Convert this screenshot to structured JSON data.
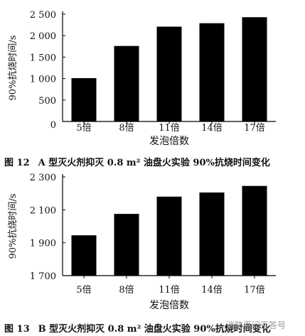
{
  "chart_data": [
    {
      "type": "bar",
      "figure_number": "图 12",
      "title": "A 型灭火剂抑灭 0.8 m² 油盘火实验 90%抗烧时间变化",
      "xlabel": "发泡倍数",
      "ylabel": "90%抗烧时间/s",
      "categories": [
        "5倍",
        "8倍",
        "11倍",
        "14倍",
        "17倍"
      ],
      "values": [
        1010,
        1760,
        2210,
        2290,
        2430
      ],
      "ylim": [
        0,
        2500
      ],
      "yticks": [
        0,
        500,
        1000,
        1500,
        2000,
        2500
      ],
      "ytick_labels": [
        "0",
        "500",
        "1 000",
        "1 500",
        "2 000",
        "2 500"
      ],
      "bar_color": "#000000",
      "grid": false
    },
    {
      "type": "bar",
      "figure_number": "图 13",
      "title": "B 型灭火剂抑灭 0.8 m² 油盘火实验 90%抗烧时间变化",
      "xlabel": "发泡倍数",
      "ylabel": "90%抗烧时间/s",
      "categories": [
        "5倍",
        "8倍",
        "11倍",
        "14倍",
        "17倍"
      ],
      "values": [
        1945,
        2075,
        2180,
        2205,
        2245
      ],
      "ylim": [
        1700,
        2300
      ],
      "yticks": [
        1700,
        1900,
        2100,
        2300
      ],
      "ytick_labels": [
        "1 700",
        "1 900",
        "2 100",
        "2 300"
      ],
      "bar_color": "#000000",
      "grid": false
    }
  ],
  "watermark": "消防百问百答号"
}
